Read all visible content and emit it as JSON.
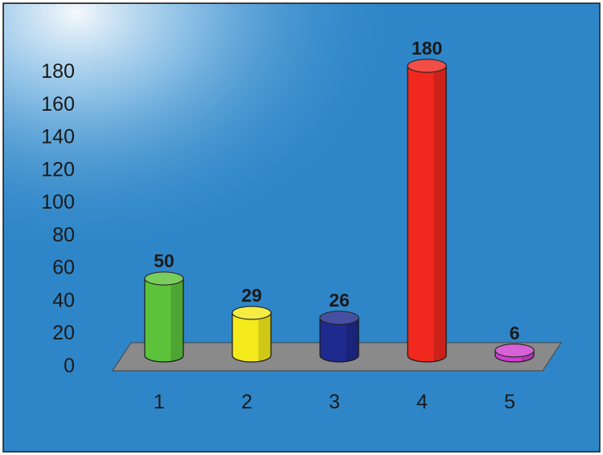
{
  "chart_data": {
    "type": "bar",
    "style": "3d-cylinder",
    "categories": [
      "1",
      "2",
      "3",
      "4",
      "5"
    ],
    "values": [
      50,
      29,
      26,
      180,
      6
    ],
    "data_labels": [
      "50",
      "29",
      "26",
      "180",
      "6"
    ],
    "y_ticks": [
      "0",
      "20",
      "40",
      "60",
      "80",
      "100",
      "120",
      "140",
      "160",
      "180"
    ],
    "ylim": [
      0,
      180
    ],
    "title": "",
    "xlabel": "",
    "ylabel": "",
    "grid": false,
    "legend": "none",
    "colors": [
      "#5cc23a",
      "#f5ea1c",
      "#1e2a8e",
      "#f0281e",
      "#cf3fcf"
    ],
    "background_color": "#2e86c8",
    "floor_color": "#8a8a8a"
  }
}
